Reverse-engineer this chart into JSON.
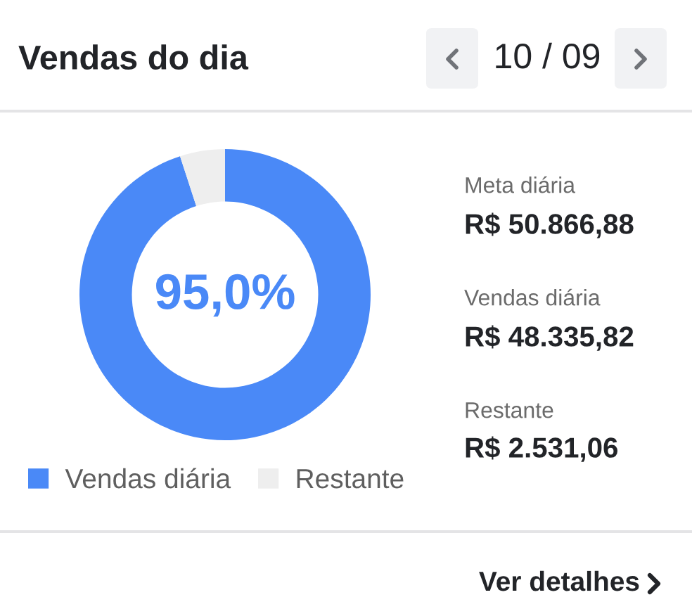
{
  "chart_data": {
    "type": "donut",
    "title": "Vendas do dia",
    "categories": [
      "Vendas diária",
      "Restante"
    ],
    "values": [
      95.0,
      5.0
    ],
    "colors": [
      "#4a89f7",
      "#eeeeee"
    ],
    "legend": "bottom",
    "annotations": [
      "10 / 09",
      "95,0%",
      "Meta diária",
      "R$ 50.866,88",
      "Vendas diária",
      "R$ 48.335,82",
      "Restante",
      "R$ 2.531,06",
      "Ver detalhes"
    ]
  }
}
